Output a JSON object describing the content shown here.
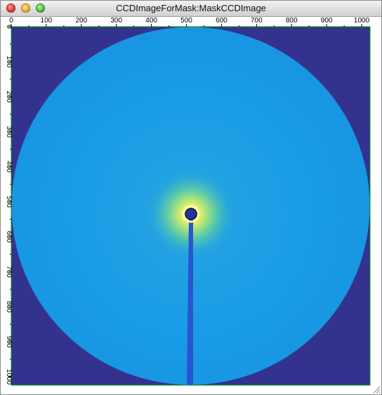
{
  "window": {
    "title": "CCDImageForMask:MaskCCDImage"
  },
  "colors": {
    "background_mask": "#33338f",
    "detector_field": "#1a9ce6",
    "beamstop": "#2855d0",
    "beam_center_glow": "#f3f16a",
    "frame": "#00a000"
  },
  "image_axes": {
    "x_ticks": [
      "0",
      "100",
      "200",
      "300",
      "400",
      "500",
      "600",
      "700",
      "800",
      "900",
      "1000"
    ],
    "y_ticks": [
      "0",
      "100",
      "200",
      "300",
      "400",
      "500",
      "600",
      "700",
      "800",
      "900",
      "1000"
    ],
    "x_range": [
      0,
      1024
    ],
    "y_range": [
      0,
      1024
    ],
    "beam_center": {
      "x": 512,
      "y": 530
    }
  },
  "icons": {
    "close": "close-button-icon",
    "minimize": "minimize-button-icon",
    "zoom": "zoom-button-icon",
    "resize": "resize-grip-icon"
  }
}
